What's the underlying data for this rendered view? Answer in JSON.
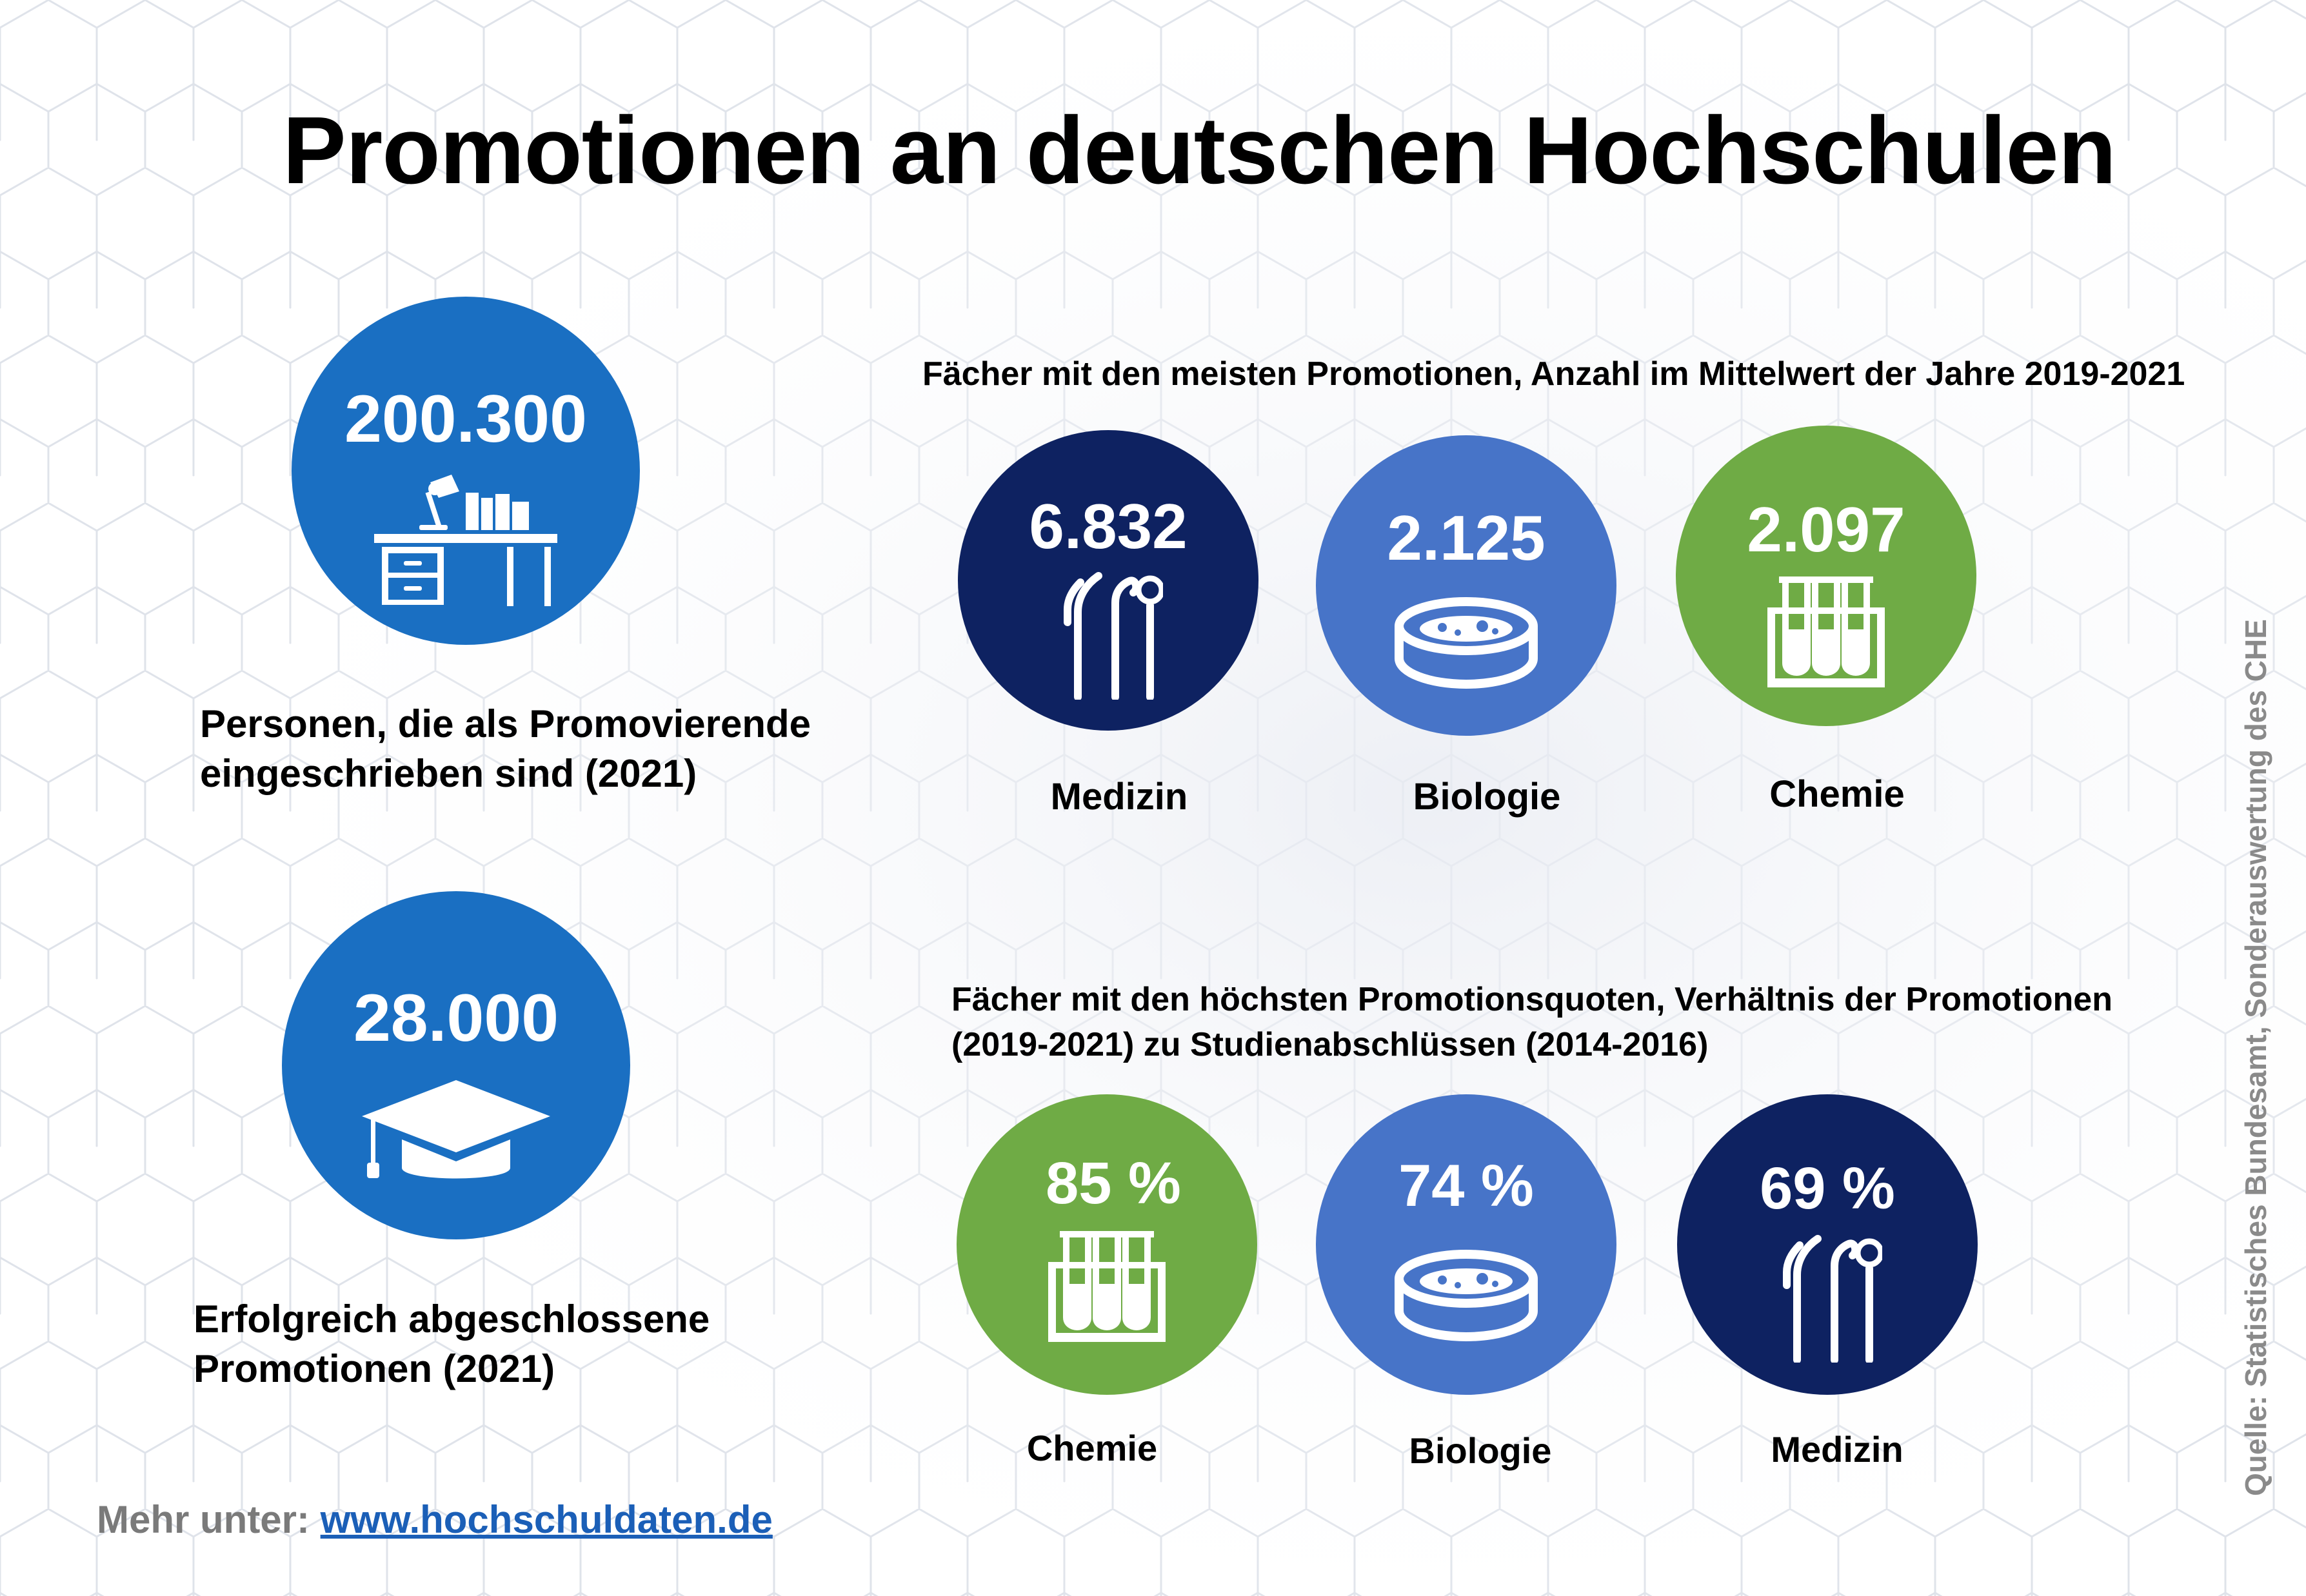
{
  "title": "Promotionen an deutschen Hochschulen",
  "left": {
    "enrolled": {
      "value": "200.300",
      "icon": "desk-icon",
      "label_line1": "Personen, die als Promovierende",
      "label_line2": "eingeschrieben sind (2021)"
    },
    "completed": {
      "value": "28.000",
      "icon": "graduation-cap-icon",
      "label_line1": "Erfolgreich abgeschlossene",
      "label_line2": "Promotionen (2021)"
    }
  },
  "most_doctorates": {
    "heading": "Fächer mit den meisten Promotionen, Anzahl im Mittelwert der Jahre 2019-2021",
    "items": [
      {
        "value": "6.832",
        "subject": "Medizin",
        "icon": "medical-instruments-icon",
        "color": "#0e2261"
      },
      {
        "value": "2.125",
        "subject": "Biologie",
        "icon": "petri-dish-icon",
        "color": "#4774c8"
      },
      {
        "value": "2.097",
        "subject": "Chemie",
        "icon": "test-tubes-icon",
        "color": "#6fab45"
      }
    ]
  },
  "highest_rates": {
    "heading_line1": "Fächer mit den höchsten Promotionsquoten, Verhältnis der Promotionen",
    "heading_line2": "(2019-2021) zu Studienabschlüssen (2014-2016)",
    "items": [
      {
        "value": "85 %",
        "subject": "Chemie",
        "icon": "test-tubes-icon",
        "color": "#6fab45"
      },
      {
        "value": "74 %",
        "subject": "Biologie",
        "icon": "petri-dish-icon",
        "color": "#4774c8"
      },
      {
        "value": "69 %",
        "subject": "Medizin",
        "icon": "medical-instruments-icon",
        "color": "#0e2261"
      }
    ]
  },
  "footer": {
    "more_label": "Mehr unter:",
    "link": "www.hochschuldaten.de"
  },
  "source": "Quelle: Statistisches Bundesamt, Sonderauswertung des CHE"
}
